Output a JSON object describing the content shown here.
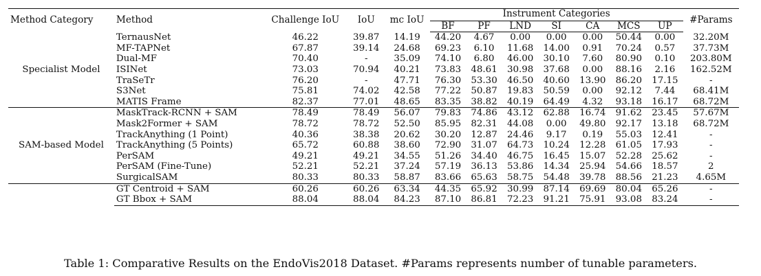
{
  "table": {
    "headers": {
      "category": "Method Category",
      "method": "Method",
      "challenge_iou": "Challenge IoU",
      "iou": "IoU",
      "mc_iou": "mc IoU",
      "instrument_group": "Instrument Categories",
      "instruments": [
        "BF",
        "PF",
        "LND",
        "SI",
        "CA",
        "MCS",
        "UP"
      ],
      "params": "#Params"
    },
    "groups": [
      {
        "category": "Specialist Model",
        "rows": [
          {
            "method": "TernausNet",
            "cells": [
              "46.22",
              "39.87",
              "14.19",
              "44.20",
              "4.67",
              "0.00",
              "0.00",
              "0.00",
              "50.44",
              "0.00",
              "32.20M"
            ]
          },
          {
            "method": "MF-TAPNet",
            "cells": [
              "67.87",
              "39.14",
              "24.68",
              "69.23",
              "6.10",
              "11.68",
              "14.00",
              "0.91",
              "70.24",
              "0.57",
              "37.73M"
            ]
          },
          {
            "method": "Dual-MF",
            "cells": [
              "70.40",
              "-",
              "35.09",
              "74.10",
              "6.80",
              "46.00",
              "30.10",
              "7.60",
              "80.90",
              "0.10",
              "203.80M"
            ]
          },
          {
            "method": "ISINet",
            "cells": [
              "73.03",
              "70.94",
              "40.21",
              "73.83",
              "48.61",
              "30.98",
              "37.68",
              "0.00",
              "88.16",
              "2.16",
              "162.52M"
            ]
          },
          {
            "method": "TraSeTr",
            "cells": [
              "76.20",
              "-",
              "47.71",
              "76.30",
              "53.30",
              "46.50",
              "40.60",
              "13.90",
              "86.20",
              "17.15",
              "-"
            ]
          },
          {
            "method": "S3Net",
            "cells": [
              "75.81",
              "74.02",
              "42.58",
              "77.22",
              "50.87",
              "19.83",
              "50.59",
              "0.00",
              "92.12",
              "7.44",
              "68.41M"
            ]
          },
          {
            "method": "MATIS Frame",
            "cells": [
              "82.37",
              "77.01",
              "48.65",
              "83.35",
              "38.82",
              "40.19",
              "64.49",
              "4.32",
              "93.18",
              "16.17",
              "68.72M"
            ]
          }
        ]
      },
      {
        "category": "SAM-based Model",
        "rows": [
          {
            "method": "MaskTrack-RCNN + SAM",
            "cells": [
              "78.49",
              "78.49",
              "56.07",
              "79.83",
              "74.86",
              "43.12",
              "62.88",
              "16.74",
              "91.62",
              "23.45",
              "57.67M"
            ],
            "bold": [
              6
            ]
          },
          {
            "method": "Mask2Former + SAM",
            "cells": [
              "78.72",
              "78.72",
              "52.50",
              "85.95",
              "82.31",
              "44.08",
              "0.00",
              "49.80",
              "92.17",
              "13.18",
              "68.72M"
            ],
            "bold": [
              3,
              4,
              7,
              8
            ]
          },
          {
            "method": "TrackAnything (1 Point)",
            "cells": [
              "40.36",
              "38.38",
              "20.62",
              "30.20",
              "12.87",
              "24.46",
              "9.17",
              "0.19",
              "55.03",
              "12.41",
              "-"
            ]
          },
          {
            "method": "TrackAnything (5 Points)",
            "cells": [
              "65.72",
              "60.88",
              "38.60",
              "72.90",
              "31.07",
              "64.73",
              "10.24",
              "12.28",
              "61.05",
              "17.93",
              "-"
            ],
            "bold": [
              5
            ]
          },
          {
            "method": "PerSAM",
            "cells": [
              "49.21",
              "49.21",
              "34.55",
              "51.26",
              "34.40",
              "46.75",
              "16.45",
              "15.07",
              "52.28",
              "25.62",
              "-"
            ],
            "bold": [
              9
            ]
          },
          {
            "method": "PerSAM (Fine-Tune)",
            "cells": [
              "52.21",
              "52.21",
              "37.24",
              "57.19",
              "36.13",
              "53.86",
              "14.34",
              "25.94",
              "54.66",
              "18.57",
              "2"
            ]
          },
          {
            "method": "SurgicalSAM",
            "cells": [
              "80.33",
              "80.33",
              "58.87",
              "83.66",
              "65.63",
              "58.75",
              "54.48",
              "39.78",
              "88.56",
              "21.23",
              "4.65M"
            ],
            "bold": [
              0,
              1,
              2
            ],
            "method_bold": true
          }
        ]
      },
      {
        "category": "",
        "rows": [
          {
            "method": "GT Centroid + SAM",
            "cells": [
              "60.26",
              "60.26",
              "63.34",
              "44.35",
              "65.92",
              "30.99",
              "87.14",
              "69.69",
              "80.04",
              "65.26",
              "-"
            ]
          },
          {
            "method": "GT Bbox + SAM",
            "cells": [
              "88.04",
              "88.04",
              "84.23",
              "87.10",
              "86.81",
              "72.23",
              "91.21",
              "75.91",
              "93.08",
              "83.24",
              "-"
            ]
          }
        ]
      }
    ]
  },
  "caption": "Table 1: Comparative Results on the EndoVis2018 Dataset. #Params represents number of tunable parameters."
}
